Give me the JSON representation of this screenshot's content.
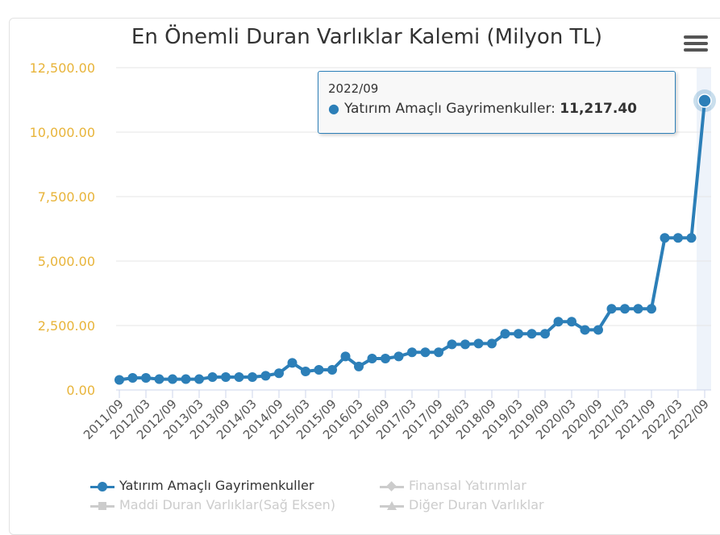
{
  "chart_data": {
    "type": "line",
    "title": "En Önemli Duran Varlıklar Kalemi (Milyon TL)",
    "xlabel": "",
    "ylabel": "",
    "ylim": [
      0,
      12500
    ],
    "y_ticks": [
      0,
      2500,
      5000,
      7500,
      10000,
      12500
    ],
    "y_tick_labels": [
      "0.00",
      "2,500.00",
      "5,000.00",
      "7,500.00",
      "10,000.00",
      "12,500.00"
    ],
    "x_tick_labels": [
      "2011/09",
      "2012/03",
      "2012/09",
      "2013/03",
      "2013/09",
      "2014/03",
      "2014/09",
      "2015/03",
      "2015/09",
      "2016/03",
      "2016/09",
      "2017/03",
      "2017/09",
      "2018/03",
      "2018/09",
      "2019/03",
      "2019/09",
      "2020/03",
      "2020/09",
      "2021/03",
      "2021/09",
      "2022/03",
      "2022/09"
    ],
    "grid": true,
    "legend_position": "bottom",
    "series": [
      {
        "name": "Yatırım Amaçlı Gayrimenkuller",
        "color": "#2c7fb8",
        "visible": true,
        "values": [
          390,
          470,
          470,
          420,
          420,
          420,
          420,
          500,
          500,
          500,
          500,
          550,
          650,
          1050,
          720,
          780,
          780,
          1300,
          910,
          1220,
          1220,
          1300,
          1460,
          1460,
          1460,
          1770,
          1770,
          1800,
          1800,
          2180,
          2180,
          2180,
          2180,
          2650,
          2650,
          2330,
          2330,
          3150,
          3150,
          3150,
          3150,
          5900,
          5900,
          5900,
          11217.4
        ]
      },
      {
        "name": "Finansal Yatırımlar",
        "visible": false
      },
      {
        "name": "Maddi Duran Varlıklar(Sağ Eksen)",
        "visible": false
      },
      {
        "name": "Diğer Duran Varlıklar",
        "visible": false
      }
    ]
  },
  "tooltip": {
    "date": "2022/09",
    "series_label": "Yatırım Amaçlı Gayrimenkuller:",
    "value": "11,217.40"
  },
  "colors": {
    "series": "#2c7fb8",
    "y_axis_labels": "#e8b43a",
    "grid": "#e6e6e6",
    "legend_hidden": "#cccccc"
  },
  "icons": {
    "menu": "hamburger-menu-icon"
  }
}
